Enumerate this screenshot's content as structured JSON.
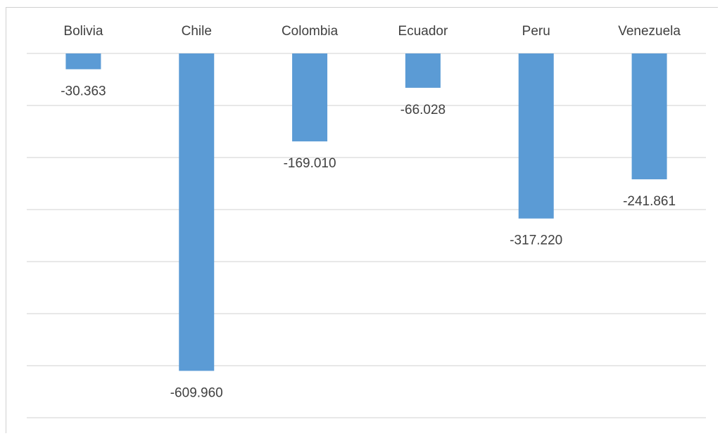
{
  "chart_data": {
    "type": "bar",
    "orientation": "vertical",
    "categories": [
      "Bolivia",
      "Chile",
      "Colombia",
      "Ecuador",
      "Peru",
      "Venezuela"
    ],
    "values": [
      -30.363,
      -609.96,
      -169.01,
      -66.028,
      -317.22,
      -241.861
    ],
    "value_labels": [
      "-30.363",
      "-609.960",
      "-169.010",
      "-66.028",
      "-317.220",
      "-241.861"
    ],
    "title": "",
    "xlabel": "",
    "ylabel": "",
    "ylim": [
      -700,
      0
    ],
    "category_axis_position": "top",
    "value_axis_visible": false,
    "grid": true,
    "legend": "none",
    "colors": {
      "bar": "#5b9bd5",
      "gridline": "#d9d9d9",
      "text": "#404040"
    }
  }
}
